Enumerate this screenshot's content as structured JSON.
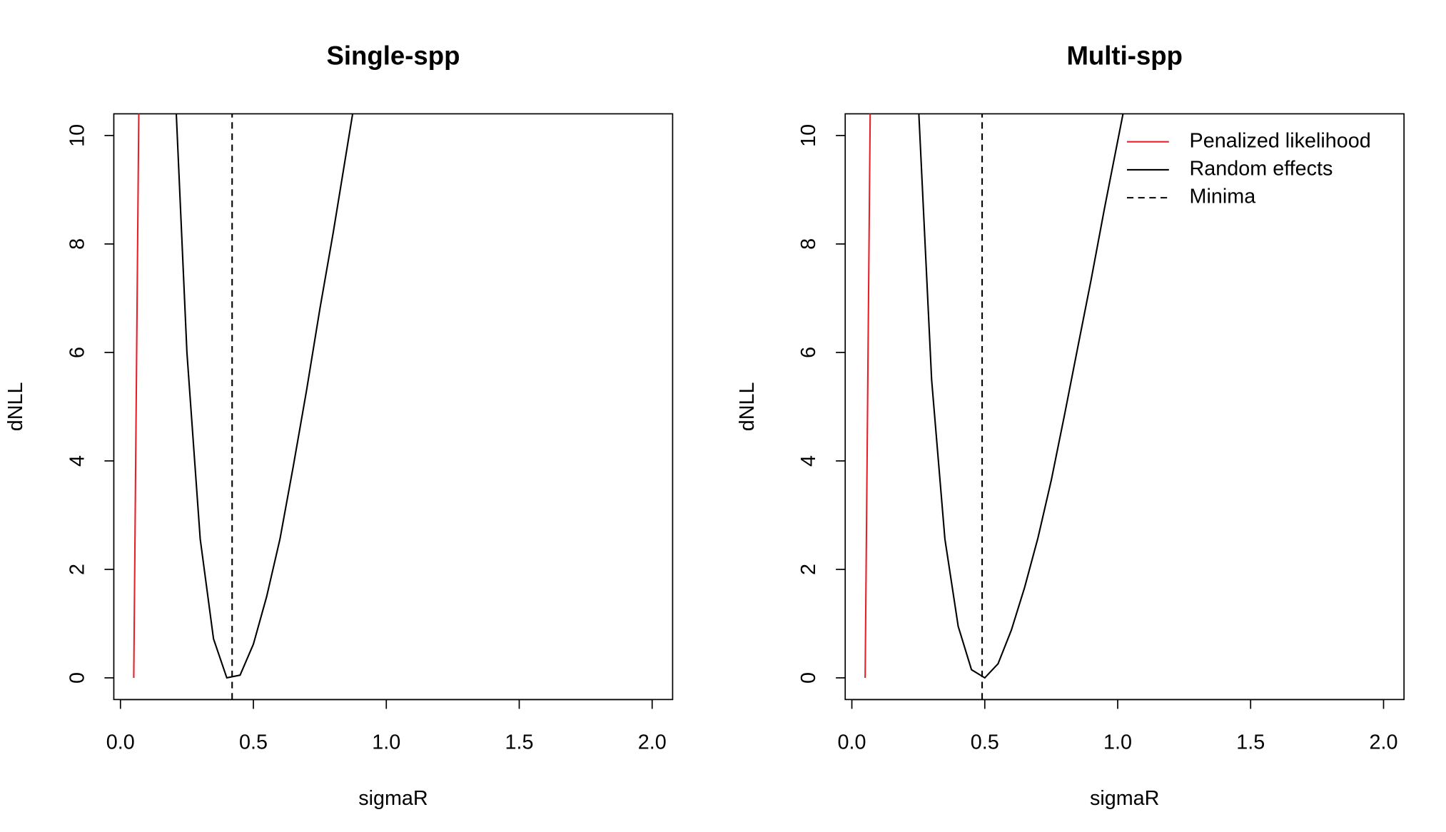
{
  "chart_data": [
    {
      "type": "line",
      "title": "Single-spp",
      "x_label": "sigmaR",
      "y_label": "dNLL",
      "xlim": [
        -0.025,
        2.077
      ],
      "ylim": [
        -0.4,
        10.4
      ],
      "xticks": [
        {
          "value": 0,
          "label": "0.0"
        },
        0.5,
        {
          "value": 1,
          "label": "1.0"
        },
        1.5,
        {
          "value": 2,
          "label": "2.0"
        }
      ],
      "yticks": [
        0,
        2,
        4,
        6,
        8,
        10
      ],
      "legend": null,
      "series": [
        {
          "name": "Penalized likelihood",
          "color": "#e8202a",
          "x": [
            0.05,
            0.07
          ],
          "values": [
            0,
            11
          ]
        },
        {
          "name": "Random effects",
          "color": "#000000",
          "x": [
            0.2,
            0.25,
            0.3,
            0.35,
            0.4,
            0.45,
            0.5,
            0.55,
            0.6,
            0.65,
            0.7,
            0.75,
            0.8,
            0.85,
            0.9
          ],
          "values": [
            11.5,
            6.0,
            2.56,
            0.72,
            0,
            0.05,
            0.62,
            1.5,
            2.56,
            3.9,
            5.3,
            6.8,
            8.2,
            9.7,
            11.2
          ]
        },
        {
          "name": "Minima",
          "color": "#000000",
          "dashed": true,
          "vline": 0.42
        }
      ]
    },
    {
      "type": "line",
      "title": "Multi-spp",
      "x_label": "sigmaR",
      "y_label": "dNLL",
      "xlim": [
        -0.025,
        2.077
      ],
      "ylim": [
        -0.4,
        10.4
      ],
      "xticks": [
        {
          "value": 0,
          "label": "0.0"
        },
        0.5,
        {
          "value": 1,
          "label": "1.0"
        },
        1.5,
        {
          "value": 2,
          "label": "2.0"
        }
      ],
      "yticks": [
        0,
        2,
        4,
        6,
        8,
        10
      ],
      "legend": "topright",
      "series": [
        {
          "name": "Penalized likelihood",
          "color": "#e8202a",
          "x": [
            0.05,
            0.07
          ],
          "values": [
            0,
            11
          ]
        },
        {
          "name": "Random effects",
          "color": "#000000",
          "x": [
            0.25,
            0.3,
            0.35,
            0.4,
            0.45,
            0.5,
            0.55,
            0.6,
            0.65,
            0.7,
            0.75,
            0.8,
            0.85,
            0.9,
            0.95,
            1.0,
            1.05
          ],
          "values": [
            10.6,
            5.5,
            2.56,
            0.95,
            0.15,
            0,
            0.26,
            0.88,
            1.67,
            2.58,
            3.64,
            4.85,
            6.1,
            7.34,
            8.65,
            9.9,
            11.15
          ]
        },
        {
          "name": "Minima",
          "color": "#000000",
          "dashed": true,
          "vline": 0.49
        }
      ]
    }
  ]
}
